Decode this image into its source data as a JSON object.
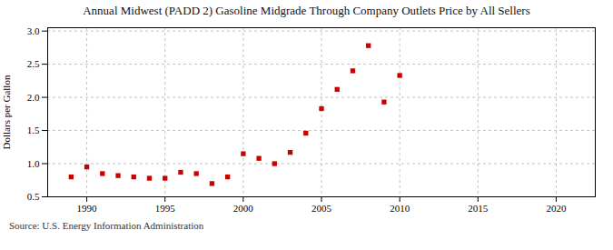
{
  "chart_data": {
    "type": "scatter",
    "title": "Annual Midwest (PADD 2) Gasoline Midgrade Through Company Outlets Price by All Sellers",
    "ylabel": "Dollars per Gallon",
    "source": "Source: U.S. Energy Information Administration",
    "x": [
      1989,
      1990,
      1991,
      1992,
      1993,
      1994,
      1995,
      1996,
      1997,
      1998,
      1999,
      2000,
      2001,
      2002,
      2003,
      2004,
      2005,
      2006,
      2007,
      2008,
      2009,
      2010
    ],
    "values": [
      0.8,
      0.95,
      0.85,
      0.82,
      0.8,
      0.78,
      0.78,
      0.87,
      0.85,
      0.7,
      0.8,
      1.15,
      1.08,
      1.0,
      1.17,
      1.46,
      1.83,
      2.12,
      2.4,
      2.78,
      1.93,
      2.33
    ],
    "color": "#cc0000",
    "marker": "square",
    "xlim": [
      1987.5,
      2022.5
    ],
    "xticks": [
      1990,
      1995,
      2000,
      2005,
      2010,
      2015,
      2020
    ],
    "ylim": [
      0.5,
      3.05
    ],
    "yticks": [
      0.5,
      {
        "value": 1,
        "label": "1.0"
      },
      1.5,
      {
        "value": 2,
        "label": "2.0"
      },
      2.5,
      {
        "value": 3,
        "label": "3.0"
      }
    ],
    "grid": true
  }
}
